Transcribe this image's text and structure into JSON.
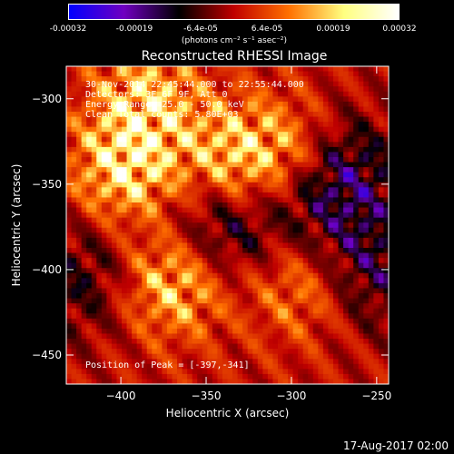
{
  "colorbar": {
    "ticks": [
      "-0.00032",
      "-0.00019",
      "-6.4e-05",
      "6.4e-05",
      "0.00019",
      "0.00032"
    ],
    "units": "(photons cm⁻² s⁻¹ asec⁻²)",
    "range": [
      -0.00032,
      0.00032
    ],
    "colors": [
      "#0000ff",
      "#7000c0",
      "#000000",
      "#c00000",
      "#ff7000",
      "#ffff80",
      "#ffffff"
    ]
  },
  "annotations": {
    "time": "30-Nov-2014 22:45:44.000 to 22:55:44.000",
    "detectors": "Detectors: 3F 6F 9F, Att 0",
    "energy": "Energy Range: 25.0 - 50.0 keV",
    "clean": "Clean    Total counts: 5.80E+03",
    "peak": "Position of Peak = [-397,-341]"
  },
  "footer": {
    "date": "17-Aug-2017 02:00"
  },
  "chart_data": {
    "type": "heatmap",
    "title": "Reconstructed RHESSI Image",
    "xlabel": "Heliocentric X (arcsec)",
    "ylabel": "Heliocentric Y (arcsec)",
    "xlim": [
      -432,
      -243
    ],
    "ylim": [
      -467,
      -281
    ],
    "xticks": [
      -400,
      -350,
      -300,
      -250
    ],
    "yticks": [
      -300,
      -350,
      -400,
      -450
    ],
    "hot_spots": [
      {
        "x": -397,
        "y": -341,
        "level": 1.0
      },
      {
        "x": -370,
        "y": -408,
        "level": 0.95
      },
      {
        "x": -335,
        "y": -335,
        "level": 0.85
      },
      {
        "x": -385,
        "y": -300,
        "level": 0.8
      },
      {
        "x": -300,
        "y": -330,
        "level": 0.7
      },
      {
        "x": -295,
        "y": -410,
        "level": 0.6
      }
    ],
    "cold_spots": [
      {
        "x": -275,
        "y": -345,
        "level": -0.9
      },
      {
        "x": -340,
        "y": -375,
        "level": -0.7
      },
      {
        "x": -255,
        "y": -400,
        "level": -0.6
      },
      {
        "x": -420,
        "y": -405,
        "level": -0.5
      }
    ]
  }
}
